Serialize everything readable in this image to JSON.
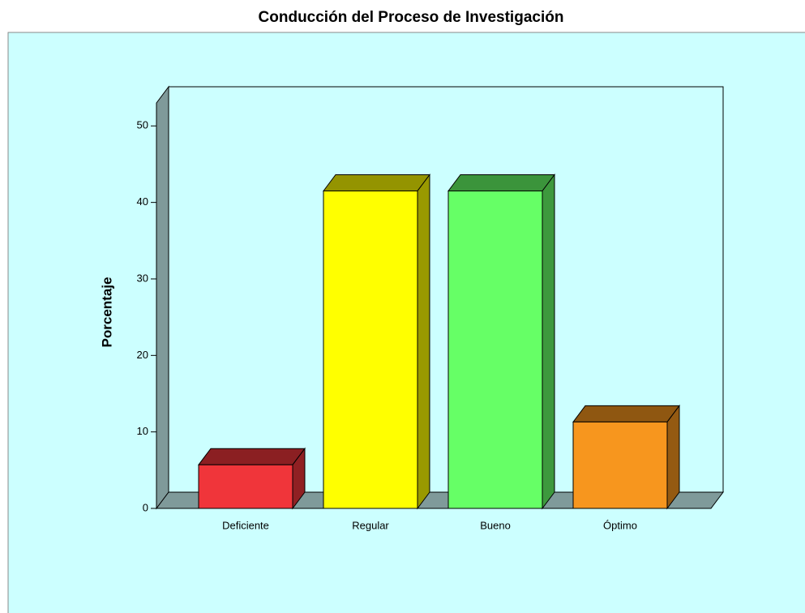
{
  "chart_data": {
    "type": "bar3d",
    "title": "Conducción del Proceso de Investigación",
    "ylabel": "Porcentaje",
    "categories": [
      "Deficiente",
      "Regular",
      "Bueno",
      "Óptimo"
    ],
    "values": [
      5.7,
      41.5,
      41.5,
      11.3
    ],
    "colors": [
      "#f0353a",
      "#ffff00",
      "#66ff66",
      "#f7961e"
    ],
    "ylim": [
      0,
      53
    ],
    "yticks": [
      0,
      10,
      20,
      30,
      40,
      50
    ]
  }
}
